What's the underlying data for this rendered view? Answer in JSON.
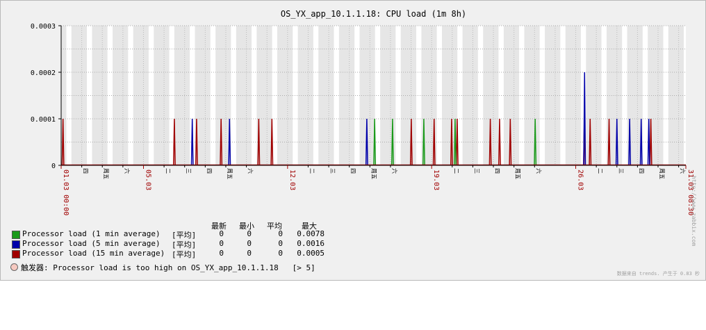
{
  "graph_title": "OS_YX_app_10.1.1.18: CPU load (1m 8h)",
  "legend": {
    "headers": [
      "最新",
      "最小",
      "平均",
      "最大"
    ],
    "items": [
      {
        "name": "Processor load (1 min average)",
        "agg": "[平均]",
        "last": "0",
        "min": "0",
        "avg": "0",
        "max": "0.0078",
        "color": "#1a9a1a"
      },
      {
        "name": "Processor load (5 min average)",
        "agg": "[平均]",
        "last": "0",
        "min": "0",
        "avg": "0",
        "max": "0.0016",
        "color": "#0000aa"
      },
      {
        "name": "Processor load (15 min average)",
        "agg": "[平均]",
        "last": "0",
        "min": "0",
        "avg": "0",
        "max": "0.0005",
        "color": "#a00000"
      }
    ]
  },
  "trigger": {
    "label": "触发器: Processor load is too high on OS_YX_app_10.1.1.18",
    "condition": "[> 5]",
    "color": "#f6c9c0"
  },
  "side_url": "http://www.zabbix.com",
  "footer": "数据来自 trends. 产生于 0.83 秒",
  "chart_data": {
    "type": "line",
    "title": "OS_YX_app_10.1.1.18: CPU load (1m 8h)",
    "y_ticks": [
      "0",
      "0.0001",
      "0.0002",
      "0.0003"
    ],
    "ylim": [
      0,
      0.0003
    ],
    "x_start": "01.03 00:00",
    "x_end": "31.03 08:30",
    "xlim": [
      0,
      30.35
    ],
    "x_red_ticks": [
      {
        "day": 0,
        "label": "01.03 00:00"
      },
      {
        "day": 4,
        "label": "05.03"
      },
      {
        "day": 11,
        "label": "12.03"
      },
      {
        "day": 18,
        "label": "19.03"
      },
      {
        "day": 25,
        "label": "26.03"
      },
      {
        "day": 30.35,
        "label": "31.03 08:30"
      }
    ],
    "x_day_ticks": [
      {
        "day": 1,
        "label": "四"
      },
      {
        "day": 2,
        "label": "周五"
      },
      {
        "day": 3,
        "label": "六"
      },
      {
        "day": 5,
        "label": "二"
      },
      {
        "day": 6,
        "label": "三"
      },
      {
        "day": 7,
        "label": "四"
      },
      {
        "day": 8,
        "label": "周五"
      },
      {
        "day": 9,
        "label": "六"
      },
      {
        "day": 12,
        "label": "二"
      },
      {
        "day": 13,
        "label": "三"
      },
      {
        "day": 14,
        "label": "四"
      },
      {
        "day": 15,
        "label": "周五"
      },
      {
        "day": 16,
        "label": "六"
      },
      {
        "day": 19,
        "label": "二"
      },
      {
        "day": 20,
        "label": "三"
      },
      {
        "day": 21,
        "label": "四"
      },
      {
        "day": 22,
        "label": "周五"
      },
      {
        "day": 23,
        "label": "六"
      },
      {
        "day": 26,
        "label": "二"
      },
      {
        "day": 27,
        "label": "三"
      },
      {
        "day": 28,
        "label": "四"
      },
      {
        "day": 29,
        "label": "周五"
      },
      {
        "day": 30,
        "label": "六"
      }
    ],
    "series": [
      {
        "name": "Processor load (1 min average)",
        "color": "#1a9a1a",
        "spikes": [
          [
            15.23,
            0.0001
          ],
          [
            16.1,
            0.0001
          ],
          [
            17.62,
            0.0001
          ],
          [
            19.14,
            0.0001
          ],
          [
            23.03,
            0.0001
          ]
        ]
      },
      {
        "name": "Processor load (5 min average)",
        "color": "#0000aa",
        "spikes": [
          [
            6.37,
            0.0001
          ],
          [
            8.18,
            0.0001
          ],
          [
            14.85,
            0.0001
          ],
          [
            25.43,
            0.0002
          ],
          [
            27.0,
            0.0001
          ],
          [
            27.62,
            0.0001
          ],
          [
            28.18,
            0.0001
          ],
          [
            28.55,
            0.0001
          ]
        ]
      },
      {
        "name": "Processor load (15 min average)",
        "color": "#a00000",
        "spikes": [
          [
            0.09,
            0.0001
          ],
          [
            5.5,
            0.0001
          ],
          [
            6.58,
            0.0001
          ],
          [
            7.77,
            0.0001
          ],
          [
            9.6,
            0.0001
          ],
          [
            10.24,
            0.0001
          ],
          [
            17.01,
            0.0001
          ],
          [
            18.12,
            0.0001
          ],
          [
            18.97,
            0.0001
          ],
          [
            19.24,
            0.0001
          ],
          [
            20.85,
            0.0001
          ],
          [
            21.3,
            0.0001
          ],
          [
            21.82,
            0.0001
          ],
          [
            25.42,
            0.0001
          ],
          [
            25.7,
            0.0001
          ],
          [
            26.62,
            0.0001
          ],
          [
            28.65,
            0.0001
          ]
        ]
      }
    ],
    "grid": true,
    "legend_position": "bottom-left"
  }
}
